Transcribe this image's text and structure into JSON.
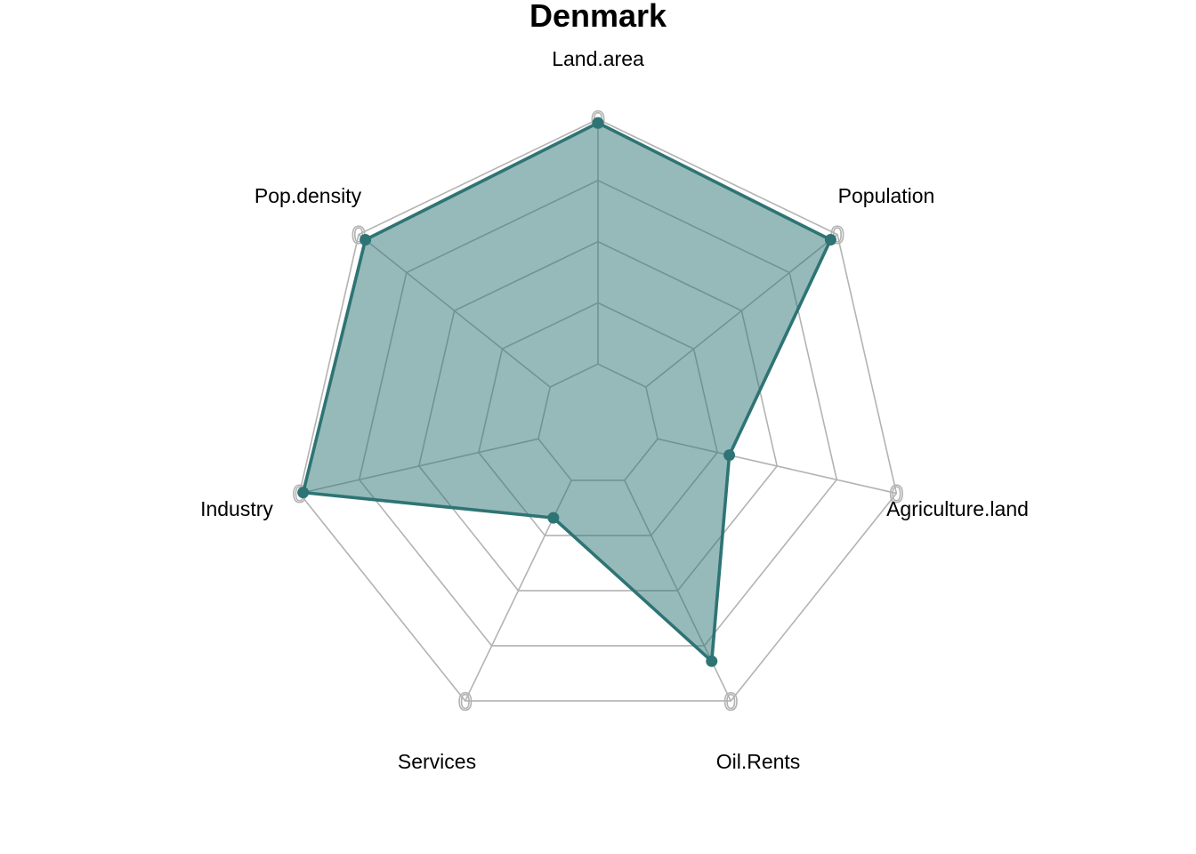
{
  "chart_data": {
    "type": "radar",
    "title": "Denmark",
    "axes": [
      "Land.area",
      "Population",
      "Agriculture.land",
      "Oil.Rents",
      "Services",
      "Industry",
      "Pop.density"
    ],
    "series": [
      {
        "values": [
          0.985,
          0.965,
          0.3,
          0.82,
          0.17,
          0.985,
          0.965
        ]
      }
    ],
    "range": [
      0,
      1
    ],
    "grid_levels": 5,
    "grid_tick_labels": [
      "0",
      "0",
      "0",
      "0",
      "0",
      "0",
      "0"
    ],
    "legend": "none"
  },
  "colors": {
    "series_line": "#2e7474",
    "series_fill": "#2e7474",
    "grid": "#b3b3b3"
  }
}
